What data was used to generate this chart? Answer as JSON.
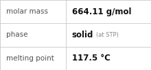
{
  "rows": [
    {
      "label": "molar mass",
      "value": "664.11 g/mol",
      "suffix": null
    },
    {
      "label": "phase",
      "value": "solid",
      "suffix": "(at STP)"
    },
    {
      "label": "melting point",
      "value": "117.5 °C",
      "suffix": null
    }
  ],
  "background_color": "#ffffff",
  "border_color": "#c8c8c8",
  "label_color": "#505050",
  "value_color": "#111111",
  "suffix_color": "#888888",
  "label_fontsize": 7.5,
  "value_fontsize": 8.5,
  "suffix_fontsize": 6.0,
  "col_split": 0.435,
  "figwidth": 2.2,
  "figheight": 1.03,
  "dpi": 100
}
